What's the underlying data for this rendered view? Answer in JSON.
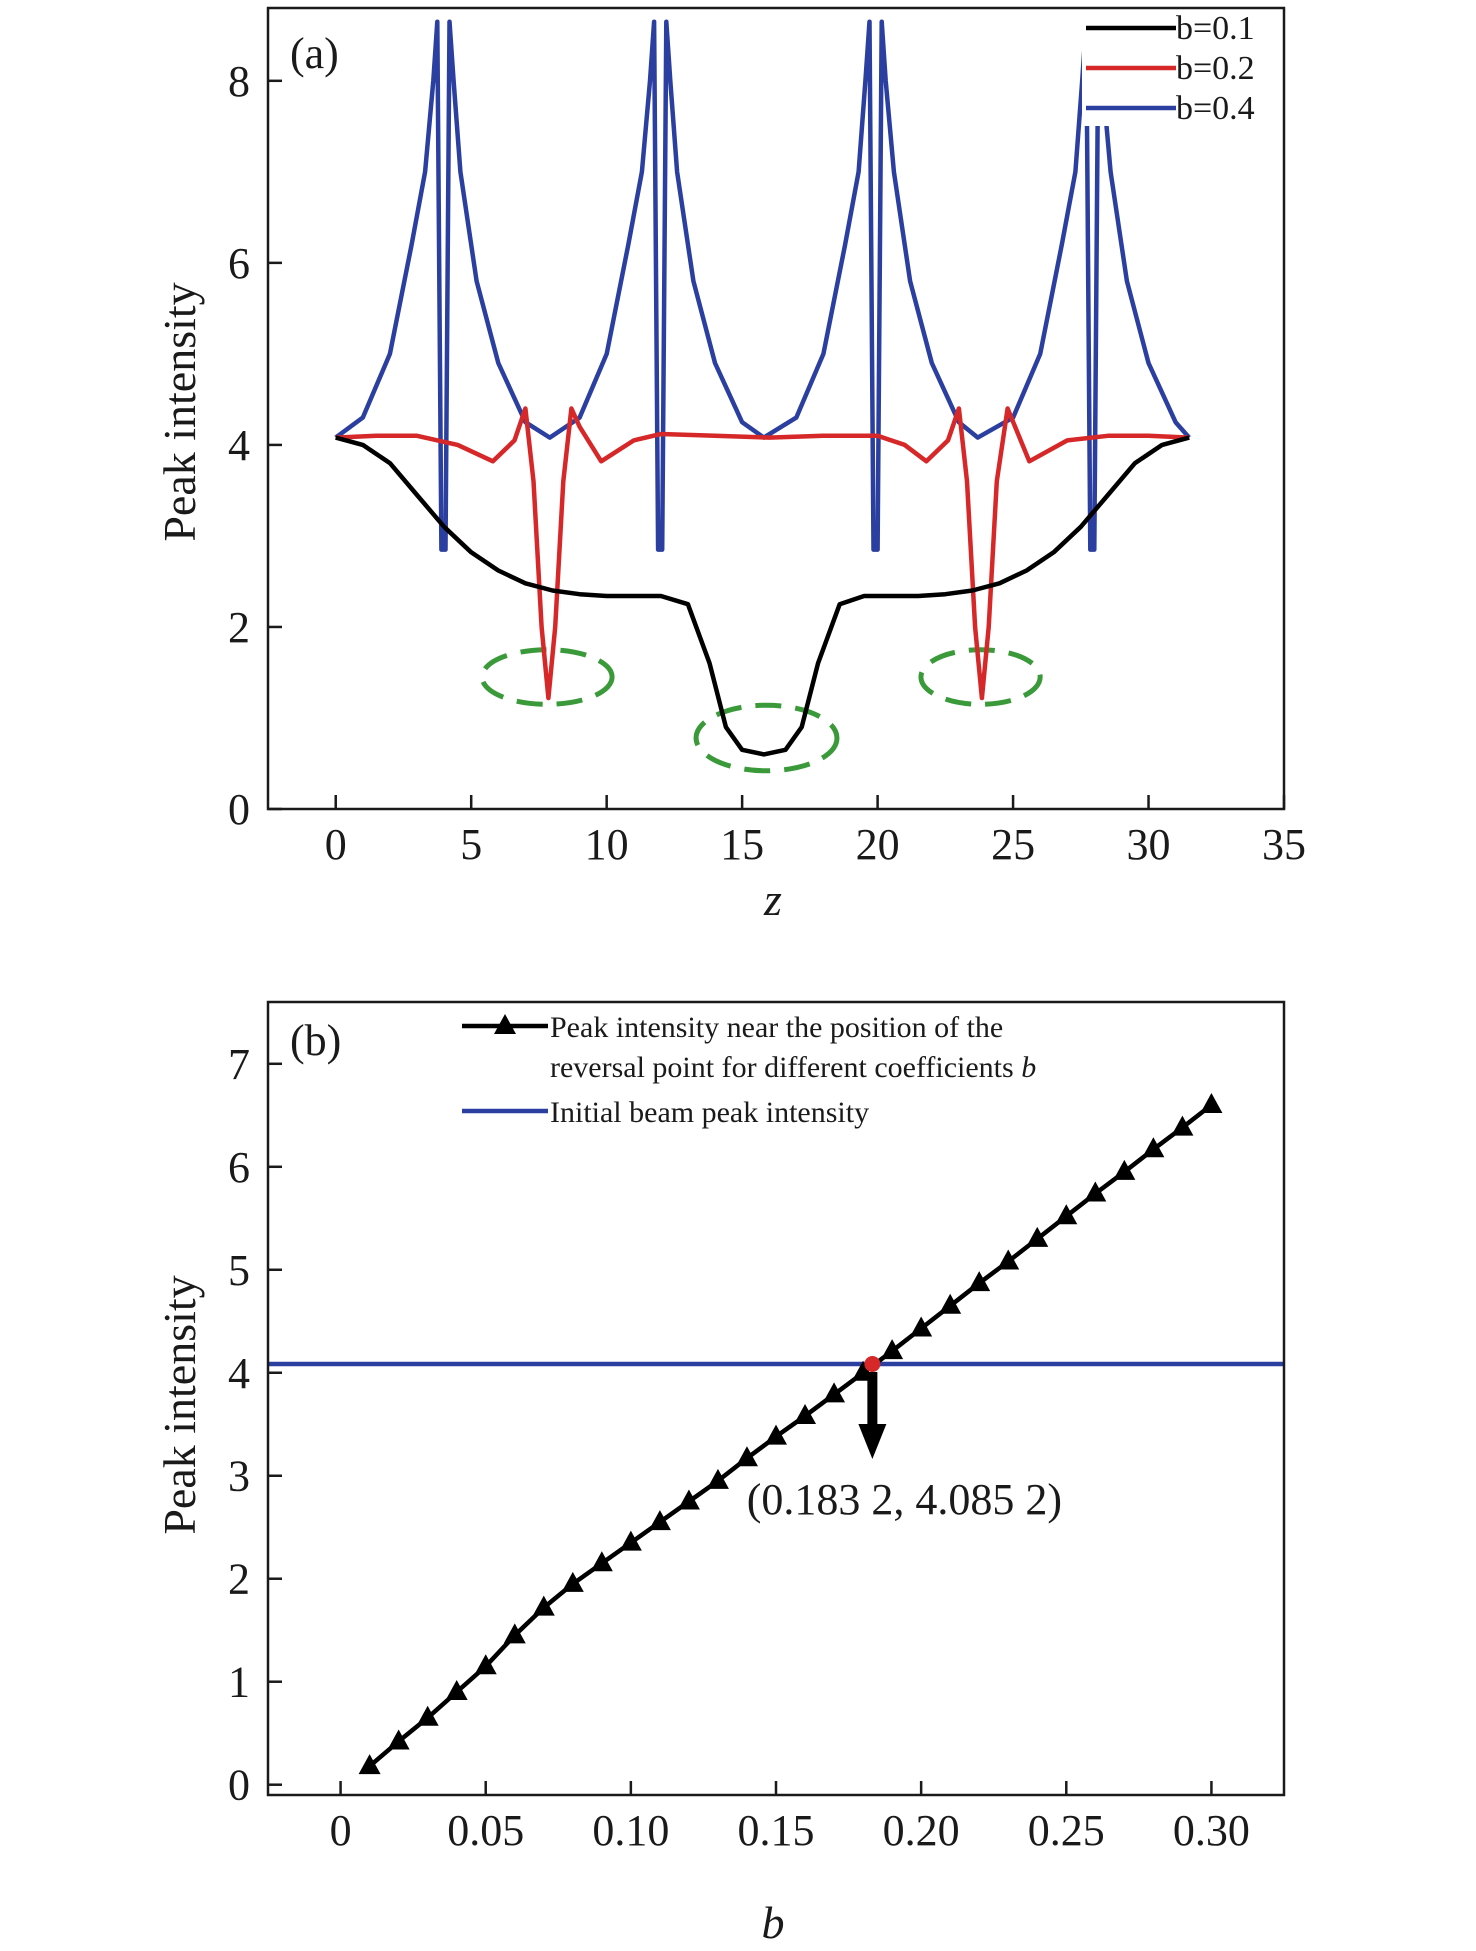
{
  "chart_data": [
    {
      "type": "line",
      "panel_label": "(a)",
      "xlabel": "z",
      "ylabel": "Peak intensity",
      "xlim": [
        -2.5,
        35
      ],
      "ylim": [
        0,
        8.8
      ],
      "xticks": [
        0,
        5,
        10,
        15,
        20,
        25,
        30,
        35
      ],
      "yticks": [
        0,
        2,
        4,
        6,
        8
      ],
      "legend_position": "top-right",
      "series": [
        {
          "name": "b=0.1",
          "color": "#000000",
          "x": [
            0,
            1,
            2,
            3,
            4,
            5,
            6,
            7,
            8,
            9,
            10,
            11,
            12,
            13,
            13.8,
            14.4,
            15,
            15.8,
            16.6,
            17.2,
            17.8,
            18.6,
            19.5,
            20.5,
            21.5,
            22.5,
            23.5,
            24.5,
            25.5,
            26.5,
            27.5,
            28.5,
            29.5,
            30.5,
            31.5
          ],
          "values": [
            4.08,
            4.0,
            3.8,
            3.45,
            3.1,
            2.82,
            2.62,
            2.48,
            2.4,
            2.36,
            2.34,
            2.34,
            2.34,
            2.25,
            1.6,
            0.9,
            0.65,
            0.6,
            0.65,
            0.9,
            1.6,
            2.25,
            2.34,
            2.34,
            2.34,
            2.36,
            2.4,
            2.48,
            2.62,
            2.82,
            3.1,
            3.45,
            3.8,
            4.0,
            4.08
          ]
        },
        {
          "name": "b=0.2",
          "color": "#d62828",
          "x": [
            0,
            1.5,
            3,
            4.5,
            5.8,
            6.6,
            7.0,
            7.3,
            7.6,
            7.85,
            8.1,
            8.4,
            8.7,
            9.0,
            9.8,
            11,
            12,
            14,
            16,
            18,
            20,
            21,
            21.8,
            22.6,
            23.0,
            23.3,
            23.6,
            23.85,
            24.1,
            24.4,
            24.8,
            25.6,
            27,
            28.5,
            30,
            31.5
          ],
          "values": [
            4.08,
            4.1,
            4.1,
            4.0,
            3.82,
            4.05,
            4.4,
            3.6,
            2.0,
            1.22,
            2.0,
            3.6,
            4.4,
            4.2,
            3.82,
            4.05,
            4.12,
            4.1,
            4.08,
            4.1,
            4.1,
            4.0,
            3.82,
            4.05,
            4.4,
            3.6,
            2.0,
            1.22,
            2.0,
            3.6,
            4.4,
            3.82,
            4.05,
            4.1,
            4.1,
            4.08
          ]
        },
        {
          "name": "b=0.4",
          "color": "#2b3fa0",
          "x": [
            0,
            1,
            2,
            2.8,
            3.3,
            3.6,
            3.75,
            3.9,
            4.05,
            4.2,
            4.35,
            4.6,
            5.2,
            6,
            7,
            7.9,
            9,
            10,
            10.8,
            11.3,
            11.6,
            11.75,
            11.9,
            12.05,
            12.2,
            12.35,
            12.6,
            13.2,
            14,
            15,
            15.8,
            17,
            18,
            18.8,
            19.3,
            19.55,
            19.7,
            19.85,
            20.0,
            20.15,
            20.3,
            20.6,
            21.2,
            22,
            23,
            23.7,
            25,
            26,
            26.8,
            27.3,
            27.55,
            27.7,
            27.85,
            28.0,
            28.15,
            28.3,
            28.6,
            29.2,
            30,
            31,
            31.5
          ],
          "values": [
            4.08,
            4.3,
            5.0,
            6.2,
            7.0,
            8.0,
            8.65,
            2.85,
            2.85,
            8.65,
            8.0,
            7.0,
            5.8,
            4.9,
            4.25,
            4.08,
            4.3,
            5.0,
            6.2,
            7.0,
            8.0,
            8.65,
            2.85,
            2.85,
            8.65,
            8.0,
            7.0,
            5.8,
            4.9,
            4.25,
            4.08,
            4.3,
            5.0,
            6.2,
            7.0,
            8.0,
            8.65,
            2.85,
            2.85,
            8.65,
            8.0,
            7.0,
            5.8,
            4.9,
            4.25,
            4.08,
            4.3,
            5.0,
            6.2,
            7.0,
            8.0,
            8.65,
            2.85,
            2.85,
            8.65,
            8.0,
            7.0,
            5.8,
            4.9,
            4.25,
            4.08
          ]
        }
      ],
      "highlights": [
        {
          "color": "#3a9a3a",
          "cx": 7.8,
          "cy": 1.45,
          "rx": 2.4,
          "ry": 0.3
        },
        {
          "color": "#3a9a3a",
          "cx": 15.9,
          "cy": 0.78,
          "rx": 2.6,
          "ry": 0.36
        },
        {
          "color": "#3a9a3a",
          "cx": 23.8,
          "cy": 1.45,
          "rx": 2.2,
          "ry": 0.3
        }
      ]
    },
    {
      "type": "line",
      "panel_label": "(b)",
      "xlabel": "b",
      "ylabel": "Peak intensity",
      "xlim": [
        -0.025,
        0.325
      ],
      "ylim": [
        -0.1,
        7.6
      ],
      "xticks": [
        0,
        0.05,
        0.1,
        0.15,
        0.2,
        0.25,
        0.3
      ],
      "xtick_labels": [
        "0",
        "0.05",
        "0.10",
        "0.15",
        "0.20",
        "0.25",
        "0.30"
      ],
      "yticks": [
        0,
        1,
        2,
        3,
        4,
        5,
        6,
        7
      ],
      "legend_position": "top",
      "series": [
        {
          "name_line1": "Peak intensity near the position of the",
          "name_line2": "reversal point for different coefficients ",
          "name_italic": "b",
          "color": "#000000",
          "marker": "triangle",
          "x": [
            0.01,
            0.02,
            0.03,
            0.04,
            0.05,
            0.06,
            0.07,
            0.08,
            0.09,
            0.1,
            0.11,
            0.12,
            0.13,
            0.14,
            0.15,
            0.16,
            0.17,
            0.18,
            0.19,
            0.2,
            0.21,
            0.22,
            0.23,
            0.24,
            0.25,
            0.26,
            0.27,
            0.28,
            0.29,
            0.3
          ],
          "values": [
            0.18,
            0.42,
            0.65,
            0.9,
            1.15,
            1.45,
            1.72,
            1.95,
            2.15,
            2.35,
            2.55,
            2.75,
            2.95,
            3.17,
            3.38,
            3.58,
            3.79,
            4.0,
            4.21,
            4.43,
            4.65,
            4.87,
            5.08,
            5.3,
            5.52,
            5.74,
            5.95,
            6.17,
            6.38,
            6.6
          ]
        },
        {
          "name": "Initial beam peak intensity",
          "color": "#2b3fa0",
          "constant": 4.0852
        }
      ],
      "annotation": {
        "text": "(0.183 2, 4.085 2)",
        "point_x": 0.1832,
        "point_y": 4.0852,
        "point_color": "#d62828"
      }
    }
  ]
}
